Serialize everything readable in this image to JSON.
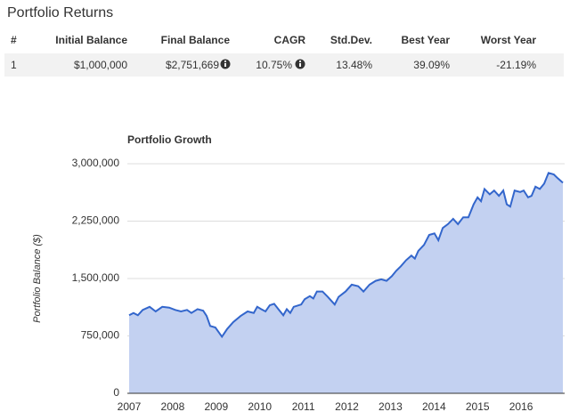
{
  "table": {
    "title": "Portfolio Returns",
    "headers": [
      "#",
      "Initial Balance",
      "Final Balance",
      "CAGR",
      "Std.Dev.",
      "Best Year",
      "Worst Year"
    ],
    "rows": [
      [
        "1",
        "$1,000,000",
        "$2,751,669",
        "10.75%",
        "13.48%",
        "39.09%",
        "-21.19%"
      ]
    ]
  },
  "chart_data": {
    "type": "area",
    "title": "Portfolio Growth",
    "y_label": "Portfolio Balance ($)",
    "line_color": "#3366cc",
    "fill_color": "#c3d1f1",
    "grid": true,
    "xlim": [
      2007,
      2017
    ],
    "xticks": [
      2007,
      2008,
      2009,
      2010,
      2011,
      2012,
      2013,
      2014,
      2015,
      2016
    ],
    "ylim": [
      0,
      3000000
    ],
    "yticks": [
      0,
      {
        "value": 750000,
        "label": "750,000"
      },
      {
        "value": 1500000,
        "label": "1,500,000"
      },
      {
        "value": 2250000,
        "label": "2,250,000"
      },
      {
        "value": 3000000,
        "label": "3,000,000"
      }
    ],
    "x": [
      2007.0,
      2007.1,
      2007.2,
      2007.31,
      2007.47,
      2007.61,
      2007.76,
      2007.92,
      2008.06,
      2008.19,
      2008.33,
      2008.43,
      2008.57,
      2008.7,
      2008.78,
      2008.86,
      2008.98,
      2009.13,
      2009.25,
      2009.39,
      2009.56,
      2009.72,
      2009.86,
      2009.94,
      2010.03,
      2010.13,
      2010.23,
      2010.33,
      2010.44,
      2010.54,
      2010.62,
      2010.7,
      2010.78,
      2010.95,
      2011.03,
      2011.15,
      2011.23,
      2011.31,
      2011.44,
      2011.56,
      2011.72,
      2011.81,
      2011.97,
      2012.11,
      2012.26,
      2012.38,
      2012.52,
      2012.66,
      2012.79,
      2012.91,
      2013.03,
      2013.13,
      2013.24,
      2013.36,
      2013.48,
      2013.56,
      2013.64,
      2013.77,
      2013.89,
      2014.01,
      2014.1,
      2014.2,
      2014.32,
      2014.44,
      2014.55,
      2014.67,
      2014.79,
      2014.91,
      2015.0,
      2015.08,
      2015.16,
      2015.28,
      2015.38,
      2015.49,
      2015.59,
      2015.67,
      2015.75,
      2015.85,
      2015.98,
      2016.06,
      2016.16,
      2016.24,
      2016.33,
      2016.43,
      2016.53,
      2016.63,
      2016.75,
      2016.84,
      2016.96
    ],
    "values": [
      1020000,
      1050000,
      1020000,
      1090000,
      1130000,
      1070000,
      1130000,
      1120000,
      1090000,
      1070000,
      1090000,
      1050000,
      1100000,
      1080000,
      1010000,
      880000,
      860000,
      740000,
      840000,
      930000,
      1010000,
      1070000,
      1050000,
      1130000,
      1100000,
      1070000,
      1150000,
      1170000,
      1090000,
      1020000,
      1100000,
      1050000,
      1130000,
      1160000,
      1230000,
      1270000,
      1240000,
      1330000,
      1330000,
      1260000,
      1160000,
      1260000,
      1330000,
      1420000,
      1400000,
      1330000,
      1420000,
      1470000,
      1490000,
      1470000,
      1530000,
      1600000,
      1660000,
      1740000,
      1800000,
      1760000,
      1860000,
      1940000,
      2070000,
      2090000,
      2000000,
      2160000,
      2210000,
      2280000,
      2210000,
      2300000,
      2300000,
      2470000,
      2560000,
      2510000,
      2670000,
      2600000,
      2650000,
      2580000,
      2650000,
      2470000,
      2440000,
      2650000,
      2630000,
      2650000,
      2560000,
      2580000,
      2700000,
      2670000,
      2740000,
      2880000,
      2860000,
      2810000,
      2751669
    ]
  }
}
